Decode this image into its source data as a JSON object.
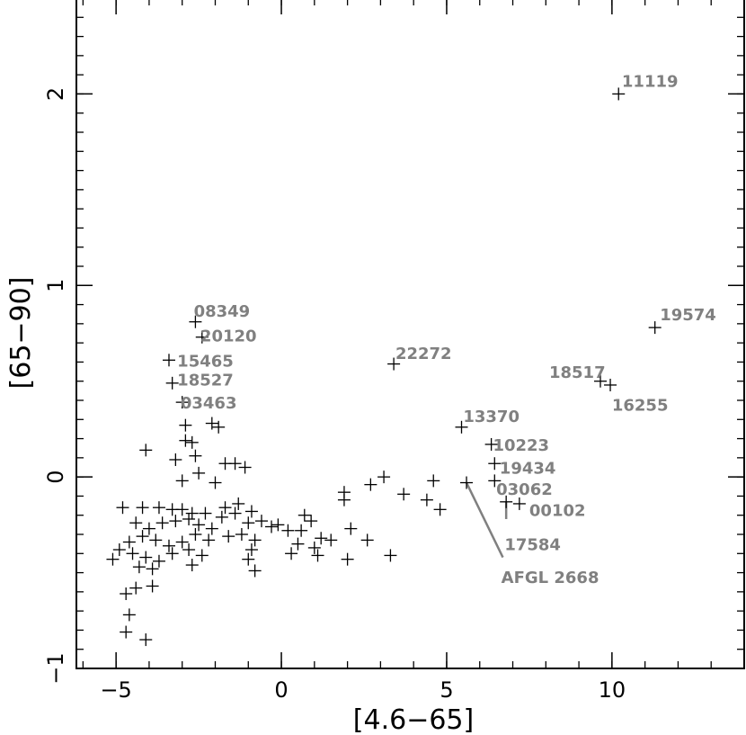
{
  "chart_data": {
    "type": "scatter",
    "xlabel": "[4.6−65]",
    "ylabel": "[65−90]",
    "xlim": [
      -6.2,
      14.0
    ],
    "ylim": [
      -1.0,
      2.5
    ],
    "grid": false,
    "marker": "plus",
    "xticks": [
      {
        "value": -5,
        "label": "−5"
      },
      {
        "value": 0,
        "label": "0"
      },
      {
        "value": 5,
        "label": "5"
      },
      {
        "value": 10,
        "label": "10"
      }
    ],
    "yticks": [
      {
        "value": -1,
        "label": "−1"
      },
      {
        "value": 0,
        "label": "0"
      },
      {
        "value": 1,
        "label": "1"
      },
      {
        "value": 2,
        "label": "2"
      }
    ],
    "points": [
      [
        10.2,
        2.0
      ],
      [
        11.3,
        0.78
      ],
      [
        9.65,
        0.5
      ],
      [
        9.95,
        0.48
      ],
      [
        3.4,
        0.59
      ],
      [
        5.45,
        0.26
      ],
      [
        6.35,
        0.17
      ],
      [
        6.45,
        0.07
      ],
      [
        6.45,
        -0.02
      ],
      [
        7.2,
        -0.14
      ],
      [
        6.8,
        -0.13
      ],
      [
        5.6,
        -0.03
      ],
      [
        -2.6,
        0.81
      ],
      [
        -2.4,
        0.73
      ],
      [
        -3.4,
        0.61
      ],
      [
        -3.3,
        0.49
      ],
      [
        -3.0,
        0.39
      ],
      [
        -2.9,
        0.27
      ],
      [
        -2.1,
        0.28
      ],
      [
        -2.9,
        0.19
      ],
      [
        -2.7,
        0.18
      ],
      [
        -3.2,
        0.09
      ],
      [
        -2.6,
        0.11
      ],
      [
        -1.4,
        0.07
      ],
      [
        -1.7,
        0.07
      ],
      [
        -1.1,
        0.05
      ],
      [
        -2.5,
        0.02
      ],
      [
        -3.0,
        -0.02
      ],
      [
        -2.0,
        -0.03
      ],
      [
        -4.1,
        0.14
      ],
      [
        -1.9,
        0.26
      ],
      [
        -4.8,
        -0.16
      ],
      [
        -4.2,
        -0.16
      ],
      [
        -3.7,
        -0.16
      ],
      [
        -3.3,
        -0.17
      ],
      [
        -3.0,
        -0.17
      ],
      [
        -2.7,
        -0.19
      ],
      [
        -2.3,
        -0.19
      ],
      [
        -1.7,
        -0.16
      ],
      [
        -1.3,
        -0.14
      ],
      [
        -0.9,
        -0.18
      ],
      [
        -4.4,
        -0.24
      ],
      [
        -4.0,
        -0.27
      ],
      [
        -3.6,
        -0.24
      ],
      [
        -3.2,
        -0.23
      ],
      [
        -2.8,
        -0.22
      ],
      [
        -2.5,
        -0.25
      ],
      [
        -2.1,
        -0.27
      ],
      [
        -1.8,
        -0.21
      ],
      [
        -1.4,
        -0.19
      ],
      [
        -1.0,
        -0.24
      ],
      [
        -0.6,
        -0.23
      ],
      [
        -0.3,
        -0.26
      ],
      [
        -0.1,
        -0.25
      ],
      [
        0.2,
        -0.28
      ],
      [
        -4.6,
        -0.34
      ],
      [
        -4.2,
        -0.31
      ],
      [
        -3.8,
        -0.33
      ],
      [
        -3.4,
        -0.36
      ],
      [
        -3.0,
        -0.34
      ],
      [
        -2.6,
        -0.3
      ],
      [
        -2.2,
        -0.33
      ],
      [
        -1.6,
        -0.31
      ],
      [
        -1.2,
        -0.3
      ],
      [
        -0.8,
        -0.33
      ],
      [
        -4.9,
        -0.38
      ],
      [
        -4.5,
        -0.4
      ],
      [
        -4.1,
        -0.42
      ],
      [
        -3.7,
        -0.44
      ],
      [
        -3.3,
        -0.4
      ],
      [
        -2.8,
        -0.38
      ],
      [
        -2.4,
        -0.41
      ],
      [
        -1.0,
        -0.43
      ],
      [
        -0.9,
        -0.38
      ],
      [
        -5.1,
        -0.43
      ],
      [
        -4.3,
        -0.47
      ],
      [
        -3.9,
        -0.48
      ],
      [
        -2.7,
        -0.46
      ],
      [
        -0.8,
        -0.49
      ],
      [
        -4.7,
        -0.61
      ],
      [
        -4.4,
        -0.58
      ],
      [
        -3.9,
        -0.57
      ],
      [
        -4.6,
        -0.72
      ],
      [
        -4.7,
        -0.81
      ],
      [
        -4.1,
        -0.85
      ],
      [
        0.5,
        -0.35
      ],
      [
        0.7,
        -0.2
      ],
      [
        0.9,
        -0.23
      ],
      [
        1.0,
        -0.37
      ],
      [
        1.2,
        -0.32
      ],
      [
        1.5,
        -0.33
      ],
      [
        1.9,
        -0.08
      ],
      [
        1.9,
        -0.12
      ],
      [
        2.0,
        -0.43
      ],
      [
        2.1,
        -0.27
      ],
      [
        0.3,
        -0.4
      ],
      [
        0.6,
        -0.28
      ],
      [
        1.1,
        -0.41
      ],
      [
        2.6,
        -0.33
      ],
      [
        2.7,
        -0.04
      ],
      [
        3.1,
        0.0
      ],
      [
        3.3,
        -0.41
      ],
      [
        3.7,
        -0.09
      ],
      [
        4.4,
        -0.12
      ],
      [
        4.6,
        -0.02
      ],
      [
        4.8,
        -0.17
      ]
    ],
    "annotations": [
      {
        "label": "11119",
        "px": [
          10.2,
          2.0
        ],
        "tx": [
          10.3,
          2.07
        ]
      },
      {
        "label": "19574",
        "px": [
          11.3,
          0.78
        ],
        "tx": [
          11.45,
          0.85
        ]
      },
      {
        "label": "18517",
        "px": [
          9.65,
          0.5
        ],
        "tx": [
          8.1,
          0.55
        ]
      },
      {
        "label": "16255",
        "px": [
          9.95,
          0.48
        ],
        "tx": [
          10.0,
          0.38
        ]
      },
      {
        "label": "22272",
        "px": [
          3.4,
          0.59
        ],
        "tx": [
          3.45,
          0.65
        ]
      },
      {
        "label": "13370",
        "px": [
          5.45,
          0.26
        ],
        "tx": [
          5.5,
          0.32
        ]
      },
      {
        "label": "10223",
        "px": [
          6.35,
          0.17
        ],
        "tx": [
          6.4,
          0.17
        ]
      },
      {
        "label": "19434",
        "px": [
          6.45,
          0.07
        ],
        "tx": [
          6.6,
          0.05
        ]
      },
      {
        "label": "03062",
        "px": [
          6.45,
          -0.02
        ],
        "tx": [
          6.5,
          -0.06
        ]
      },
      {
        "label": "00102",
        "px": [
          7.2,
          -0.14
        ],
        "tx": [
          7.5,
          -0.17
        ]
      },
      {
        "label": "17584",
        "px": [
          6.8,
          -0.13
        ],
        "tx": [
          6.75,
          -0.35
        ],
        "line_to": [
          6.8,
          -0.22
        ]
      },
      {
        "label": "AFGL 2668",
        "px": [
          5.6,
          -0.03
        ],
        "tx": [
          6.65,
          -0.52
        ],
        "line_to": [
          6.7,
          -0.42
        ]
      },
      {
        "label": "08349",
        "px": [
          -2.6,
          0.81
        ],
        "tx": [
          -2.65,
          0.87
        ]
      },
      {
        "label": "20120",
        "px": [
          -2.4,
          0.73
        ],
        "tx": [
          -2.45,
          0.74
        ]
      },
      {
        "label": "15465",
        "px": [
          -3.4,
          0.61
        ],
        "tx": [
          -3.15,
          0.61
        ]
      },
      {
        "label": "18527",
        "px": [
          -3.3,
          0.49
        ],
        "tx": [
          -3.15,
          0.51
        ]
      },
      {
        "label": "03463",
        "px": [
          -3.0,
          0.39
        ],
        "tx": [
          -3.05,
          0.39
        ]
      }
    ]
  }
}
